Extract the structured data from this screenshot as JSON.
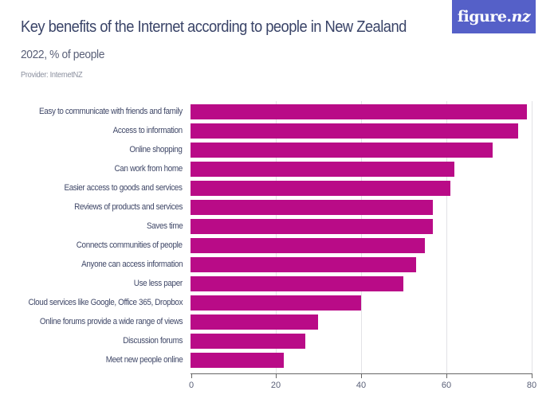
{
  "header": {
    "title": "Key benefits of the Internet according to people in New Zealand",
    "subtitle": "2022, % of people",
    "provider": "Provider: InternetNZ",
    "logo_main": "figure.",
    "logo_nz": "nz"
  },
  "colors": {
    "bar": "#b90b87",
    "logo_bg": "#5560c8",
    "title": "#3a4468"
  },
  "chart_data": {
    "type": "bar",
    "orientation": "horizontal",
    "title": "Key benefits of the Internet according to people in New Zealand",
    "subtitle": "2022, % of people",
    "xlabel": "",
    "ylabel": "",
    "xlim": [
      0,
      80
    ],
    "xticks": [
      0,
      20,
      40,
      60,
      80
    ],
    "grid": true,
    "legend": "none",
    "categories": [
      "Easy to communicate with friends and family",
      "Access to information",
      "Online shopping",
      "Can work from home",
      "Easier access to goods and services",
      "Reviews of products and services",
      "Saves time",
      "Connects communities of people",
      "Anyone can access information",
      "Use less paper",
      "Cloud services like Google, Office 365, Dropbox",
      "Online forums provide a wide range of views",
      "Discussion forums",
      "Meet new people online"
    ],
    "values": [
      79,
      77,
      71,
      62,
      61,
      57,
      57,
      55,
      53,
      50,
      40,
      30,
      27,
      22
    ]
  }
}
